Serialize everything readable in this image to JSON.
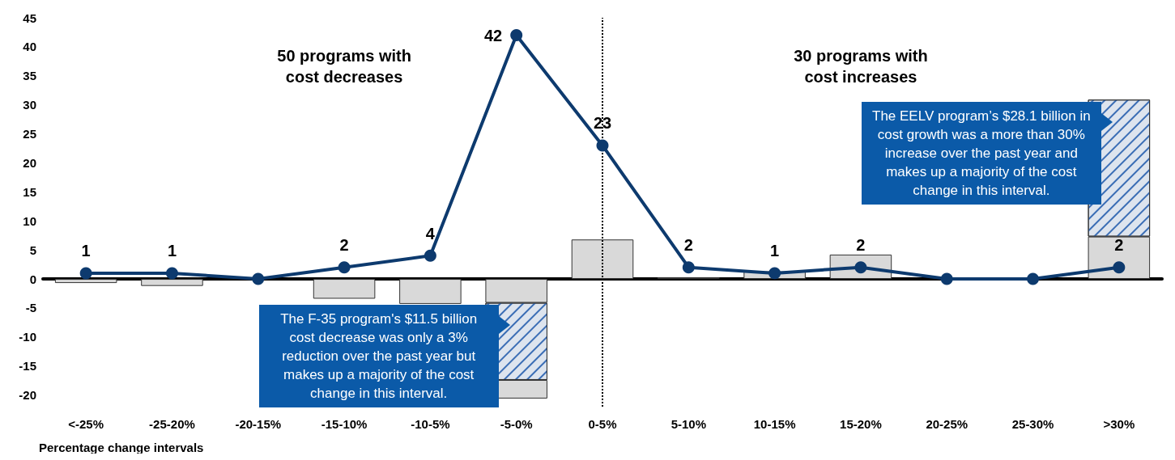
{
  "chart_data": {
    "type": "bar",
    "xlabel": "Percentage change intervals",
    "categories": [
      "<-25%",
      "-25-20%",
      "-20-15%",
      "-15-10%",
      "-10-5%",
      "-5-0%",
      "0-5%",
      "5-10%",
      "10-15%",
      "15-20%",
      "20-25%",
      "25-30%",
      ">30%"
    ],
    "stacked": true,
    "series": [
      {
        "color": "#d9d9d9",
        "values": [
          -0.7,
          -1.2,
          0,
          -3.4,
          -4.3,
          -4.1,
          6.8,
          0.3,
          1.3,
          4.2,
          0,
          0,
          7.3
        ]
      },
      {
        "color": "#dde4ee",
        "values": [
          null,
          null,
          null,
          null,
          null,
          -13.3,
          null,
          null,
          null,
          null,
          null,
          null,
          23.6
        ]
      },
      {
        "color": "#d9d9d9",
        "values": [
          null,
          null,
          null,
          null,
          null,
          -3.2,
          null,
          null,
          null,
          null,
          null,
          null,
          null
        ]
      },
      {
        "type": "line",
        "color": "#0d3a6e",
        "values": [
          1,
          1,
          0,
          2,
          4,
          42,
          23,
          2,
          1,
          2,
          0,
          0,
          2
        ],
        "value_labels": [
          "1",
          "1",
          null,
          "2",
          "4",
          "42",
          "23",
          "2",
          "1",
          "2",
          null,
          null,
          "2"
        ]
      }
    ],
    "ylim": [
      -22,
      45
    ],
    "yticks": [
      -20,
      -15,
      -10,
      -5,
      0,
      5,
      10,
      15,
      20,
      25,
      30,
      35,
      40,
      45
    ],
    "grid": false,
    "marker": "circle",
    "ref_lines": [
      {
        "axis": "x",
        "value": "0-5%",
        "line_style": "dotted",
        "color": "#000000"
      }
    ],
    "annotations": [
      "50 programs with\ncost decreases",
      "30 programs with\ncost increases",
      "The F-35 program's $11.5 billion cost decrease was only a 3% reduction over the past year but makes up a majority of the cost change in this interval.",
      "The EELV program’s $28.1 billion in cost growth was a more than 30% increase over the past year and makes up a majority of the cost change in this interval."
    ]
  }
}
